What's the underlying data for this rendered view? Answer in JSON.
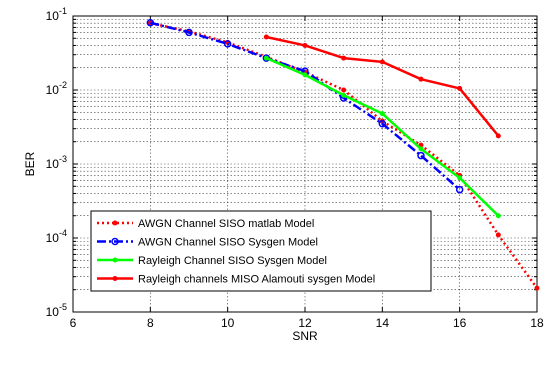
{
  "chart_data": {
    "type": "line",
    "title": "",
    "xlabel": "SNR",
    "ylabel": "BER",
    "xlim": [
      6,
      18
    ],
    "ylim": [
      1e-05,
      0.1
    ],
    "yscale": "log",
    "grid": true,
    "legend_position": "bottom-left",
    "x_ticks": [
      "6",
      "8",
      "10",
      "12",
      "14",
      "16",
      "18"
    ],
    "y_ticks": [
      {
        "value": 0.1,
        "base": "10",
        "exp": "-1"
      },
      {
        "value": 0.01,
        "base": "10",
        "exp": "-2"
      },
      {
        "value": 0.001,
        "base": "10",
        "exp": "-3"
      },
      {
        "value": 0.0001,
        "base": "10",
        "exp": "-4"
      },
      {
        "value": 1e-05,
        "base": "10",
        "exp": "-5"
      }
    ],
    "series": [
      {
        "name": "AWGN Channel SISO matlab Model",
        "color": "#ff0000",
        "line_style": "dotted",
        "marker": "dot",
        "x": [
          8,
          9,
          10,
          11,
          12,
          13,
          14,
          15,
          16,
          17,
          18
        ],
        "y": [
          0.08,
          0.062,
          0.044,
          0.028,
          0.0175,
          0.01,
          0.0038,
          0.0018,
          0.0007,
          0.00011,
          2.1e-05
        ]
      },
      {
        "name": "AWGN Channel SISO Sysgen Model",
        "color": "#0000ff",
        "line_style": "dashdot",
        "marker": "circle",
        "x": [
          8,
          9,
          10,
          11,
          12,
          13,
          14,
          15,
          16
        ],
        "y": [
          0.081,
          0.06,
          0.042,
          0.027,
          0.018,
          0.0078,
          0.0035,
          0.0013,
          0.00045
        ]
      },
      {
        "name": "Rayleigh Channel SISO Sysgen Model",
        "color": "#00ff00",
        "line_style": "solid",
        "marker": "dot",
        "x": [
          11,
          12,
          13,
          14,
          15,
          16,
          17
        ],
        "y": [
          0.027,
          0.016,
          0.0085,
          0.0048,
          0.0016,
          0.00065,
          0.0002
        ]
      },
      {
        "name": "Rayleigh channels MISO Alamouti sysgen Model",
        "color": "#ff0000",
        "line_style": "solid",
        "marker": "dot",
        "x": [
          11,
          12,
          13,
          14,
          15,
          16,
          17
        ],
        "y": [
          0.052,
          0.04,
          0.027,
          0.024,
          0.014,
          0.0105,
          0.0024
        ]
      }
    ]
  }
}
